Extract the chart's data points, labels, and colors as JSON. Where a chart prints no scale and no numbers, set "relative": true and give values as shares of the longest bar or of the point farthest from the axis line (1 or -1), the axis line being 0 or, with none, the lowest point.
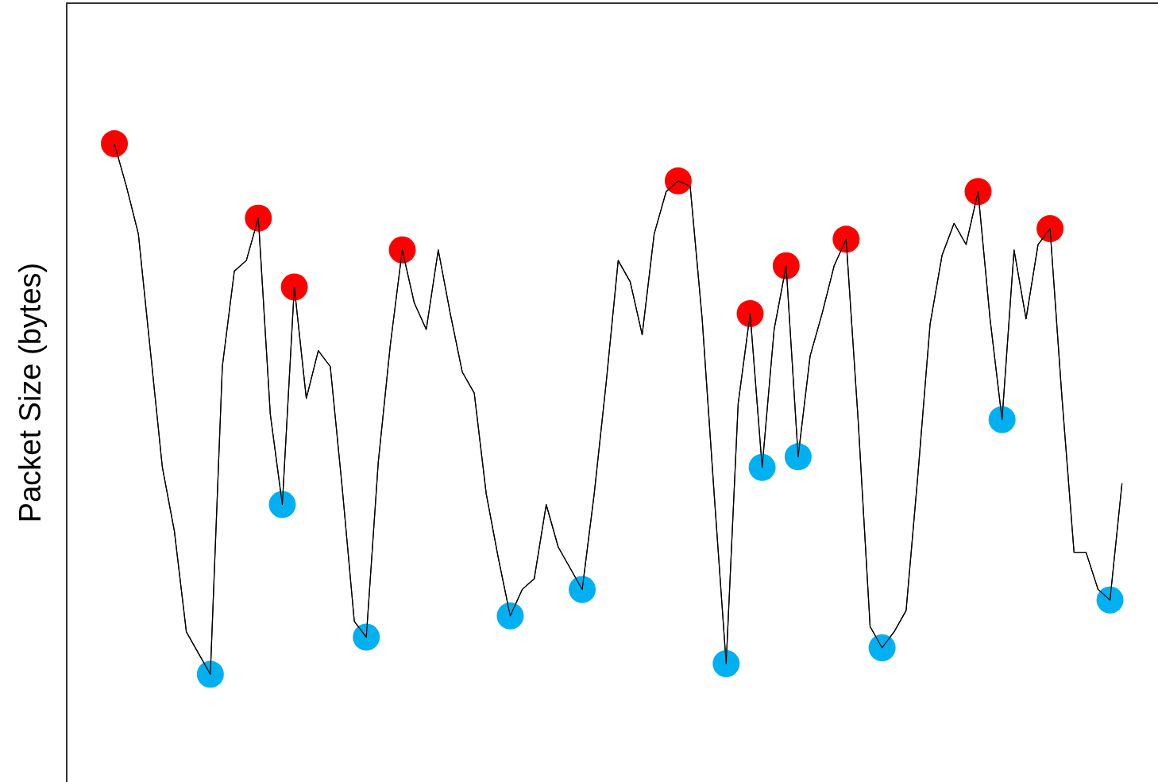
{
  "chart_data": {
    "type": "line",
    "relative": true,
    "ylabel": "Packet Size (bytes)",
    "legend": false,
    "grid": false,
    "categories": [
      null,
      null,
      null,
      null,
      null,
      null,
      null,
      null,
      null,
      null,
      null,
      null,
      null,
      null,
      null,
      null,
      null,
      null,
      null,
      null,
      null,
      null,
      null,
      null,
      null,
      null,
      null,
      null,
      null,
      null,
      null,
      null,
      null,
      null,
      null,
      null,
      null,
      null,
      null,
      null,
      null,
      null,
      null,
      null,
      null,
      null,
      null,
      null,
      null,
      null,
      null,
      null,
      null,
      null,
      null,
      null,
      null,
      null,
      null,
      null,
      null,
      null,
      null,
      null,
      null,
      null,
      null,
      null,
      null,
      null,
      null,
      null,
      null,
      null,
      null,
      null,
      null,
      null,
      null,
      null,
      null,
      null,
      null,
      null,
      null,
      null,
      null,
      null,
      null,
      null,
      null,
      null
    ],
    "series": [
      {
        "type": "line",
        "color": "#000000",
        "values": [
          null,
          null,
          null,
          null,
          1.0,
          0.92,
          0.83,
          0.61,
          0.39,
          0.27,
          0.08,
          0.04,
          0,
          0.58,
          0.76,
          0.78,
          0.86,
          0.49,
          0.32,
          0.73,
          0.52,
          0.61,
          0.58,
          0.35,
          0.1,
          0.07,
          0.4,
          0.62,
          0.8,
          0.7,
          0.65,
          0.8,
          0.68,
          0.57,
          0.53,
          0.34,
          0.22,
          0.11,
          0.16,
          0.18,
          0.32,
          0.24,
          0.2,
          0.16,
          0.34,
          0.55,
          0.78,
          0.74,
          0.64,
          0.83,
          0.91,
          0.93,
          0.92,
          0.67,
          0.34,
          0.02,
          0.51,
          0.68,
          0.39,
          0.65,
          0.77,
          0.41,
          0.6,
          0.68,
          0.77,
          0.82,
          0.48,
          0.09,
          0.05,
          0.08,
          0.12,
          0.38,
          0.66,
          0.79,
          0.85,
          0.81,
          0.91,
          0.67,
          0.48,
          0.8,
          0.67,
          0.81,
          0.84,
          0.52,
          0.23,
          0.23,
          0.16,
          0.14,
          0.36,
          null,
          null,
          null
        ],
        "colors": [
          null,
          null,
          null,
          null,
          "#ff0000",
          null,
          null,
          null,
          null,
          null,
          null,
          null,
          "#00b0f0",
          null,
          null,
          null,
          "#ff0000",
          null,
          "#00b0f0",
          "#ff0000",
          null,
          null,
          null,
          null,
          null,
          "#00b0f0",
          null,
          null,
          "#ff0000",
          null,
          null,
          null,
          null,
          null,
          null,
          null,
          null,
          "#00b0f0",
          null,
          null,
          null,
          null,
          null,
          "#00b0f0",
          null,
          null,
          null,
          null,
          null,
          null,
          null,
          "#ff0000",
          null,
          null,
          null,
          "#00b0f0",
          null,
          "#ff0000",
          "#00b0f0",
          null,
          "#ff0000",
          "#00b0f0",
          null,
          null,
          null,
          "#ff0000",
          null,
          null,
          "#00b0f0",
          null,
          null,
          null,
          null,
          null,
          null,
          null,
          "#ff0000",
          null,
          "#00b0f0",
          null,
          null,
          null,
          "#ff0000",
          null,
          null,
          null,
          null,
          "#00b0f0",
          null,
          null,
          null,
          null
        ]
      }
    ]
  }
}
